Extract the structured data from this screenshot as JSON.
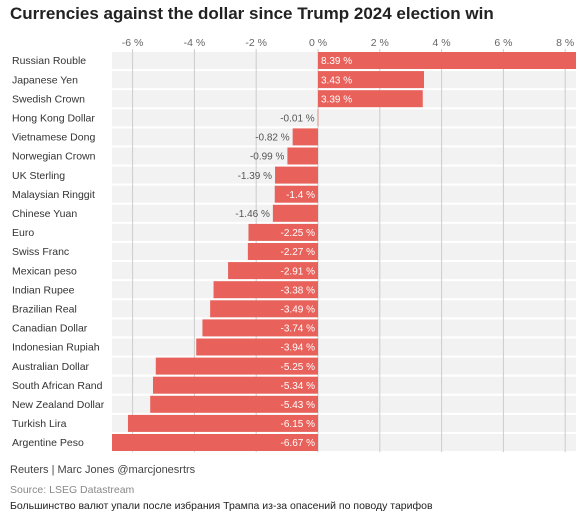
{
  "title": "Currencies against the dollar since Trump 2024 election win",
  "footer": {
    "credit": "Reuters | Marc Jones @marcjonesrtrs",
    "source": "Source: LSEG Datastream",
    "caption": "Большинство валют упали после избрания Трампа из-за опасений по поводу тарифов"
  },
  "colors": {
    "bar": "#e8615a",
    "row_background": "#f2f2f2",
    "grid": "#cccccc",
    "label_inside": "#ffffff",
    "label_outside": "#555555"
  },
  "chart_data": {
    "type": "bar",
    "orientation": "horizontal",
    "title": "Currencies against the dollar since Trump 2024 election win",
    "x_ticks": [
      -6,
      -4,
      -2,
      0,
      2,
      4,
      6,
      8
    ],
    "x_tick_labels": [
      "-6 %",
      "-4 %",
      "-2 %",
      "0 %",
      "2 %",
      "4 %",
      "6 %",
      "8 %"
    ],
    "xlim": [
      -6.7,
      8.4
    ],
    "grid": true,
    "categories": [
      "Russian Rouble",
      "Japanese Yen",
      "Swedish Crown",
      "Hong Kong Dollar",
      "Vietnamese Dong",
      "Norwegian Crown",
      "UK Sterling",
      "Malaysian Ringgit",
      "Chinese Yuan",
      "Euro",
      "Swiss Franc",
      "Mexican peso",
      "Indian Rupee",
      "Brazilian Real",
      "Canadian Dollar",
      "Indonesian Rupiah",
      "Australian Dollar",
      "South African Rand",
      "New Zealand Dollar",
      "Turkish Lira",
      "Argentine Peso"
    ],
    "values": [
      8.39,
      3.43,
      3.39,
      -0.01,
      -0.82,
      -0.99,
      -1.39,
      -1.4,
      -1.46,
      -2.25,
      -2.27,
      -2.91,
      -3.38,
      -3.49,
      -3.74,
      -3.94,
      -5.25,
      -5.34,
      -5.43,
      -6.15,
      -6.67
    ],
    "value_labels": [
      "8.39 %",
      "3.43 %",
      "3.39 %",
      "-0.01 %",
      "-0.82 %",
      "-0.99 %",
      "-1.39 %",
      "-1.4 %",
      "-1.46 %",
      "-2.25 %",
      "-2.27 %",
      "-2.91 %",
      "-3.38 %",
      "-3.49 %",
      "-3.74 %",
      "-3.94 %",
      "-5.25 %",
      "-5.34 %",
      "-5.43 %",
      "-6.15 %",
      "-6.67 %"
    ]
  }
}
